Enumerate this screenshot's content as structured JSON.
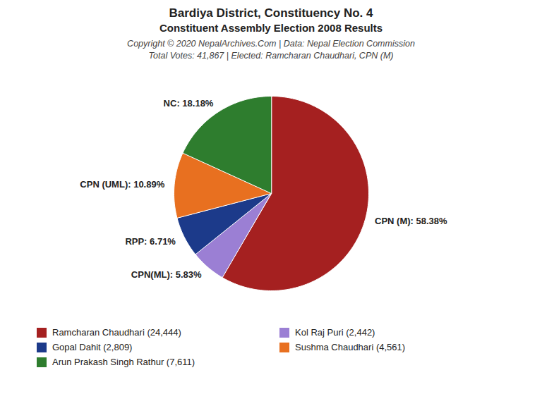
{
  "chart_data": {
    "type": "pie",
    "title": "Bardiya District, Constituency No. 4",
    "subtitle": "Constituent Assembly Election 2008 Results",
    "annotations": [
      "Copyright © 2020 NepalArchives.Com | Data: Nepal Election Commission",
      "Total Votes: 41,867 | Elected: Ramcharan Chaudhari, CPN (M)"
    ],
    "categories": [
      "Ramcharan Chaudhari (24,444)",
      "Kol Raj Puri (2,442)",
      "Gopal Dahit (2,809)",
      "Sushma Chaudhari (4,561)",
      "Arun Prakash Singh Rathur (7,611)"
    ],
    "values": [
      58.38,
      5.83,
      6.71,
      10.89,
      18.18
    ],
    "value_labels": [
      "CPN (M): 58.38%",
      "CPN(ML): 5.83%",
      "RPP: 6.71%",
      "CPN (UML): 10.89%",
      "NC: 18.18%"
    ],
    "colors": [
      "#A52020",
      "#9B7FD4",
      "#1C3A8A",
      "#E87020",
      "#2E7D2E"
    ],
    "data_labels": true,
    "legend": "bottom"
  }
}
